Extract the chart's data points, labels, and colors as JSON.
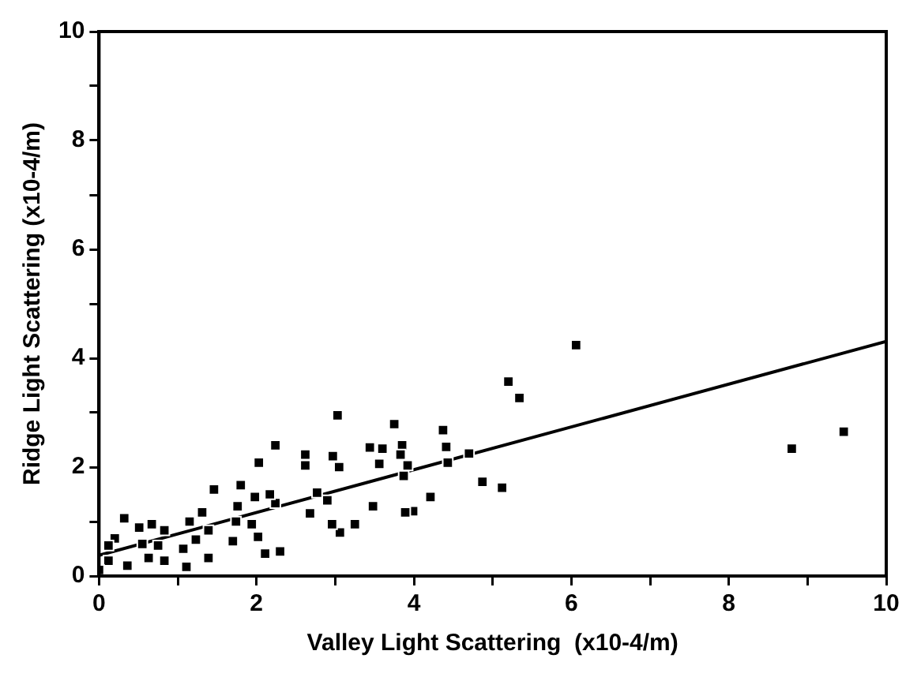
{
  "chart_data": {
    "type": "scatter",
    "xlabel": "Valley Light Scattering  (x10-4/m)",
    "ylabel": "Ridge Light Scattering (x10-4/m)",
    "xlim": [
      0,
      10
    ],
    "ylim": [
      0,
      10
    ],
    "xticks": [
      0,
      {
        "value": 1,
        "label": null
      },
      2,
      {
        "value": 3,
        "label": null
      },
      4,
      {
        "value": 5,
        "label": null
      },
      6,
      {
        "value": 7,
        "label": null
      },
      8,
      {
        "value": 9,
        "label": null
      },
      10
    ],
    "yticks": [
      0,
      {
        "value": 1,
        "label": null
      },
      2,
      {
        "value": 3,
        "label": null
      },
      4,
      {
        "value": 5,
        "label": null
      },
      6,
      {
        "value": 7,
        "label": null
      },
      8,
      {
        "value": 9,
        "label": null
      },
      10
    ],
    "marker": "square",
    "series": [
      {
        "color": "#000000",
        "x": [
          6.06,
          5.2,
          5.34,
          8.8,
          9.46,
          3.03,
          3.75,
          4.37,
          4.7,
          4.41,
          3.6,
          3.44,
          3.56,
          3.85,
          3.83,
          3.92,
          3.87,
          4.43,
          2.62,
          2.62,
          2.97,
          3.05,
          2.24,
          2.03,
          4.87,
          5.12,
          4.21,
          3.99,
          3.89,
          3.48,
          3.25,
          3.06,
          2.96,
          2.77,
          2.9,
          2.68,
          2.24,
          2.17,
          1.98,
          1.8,
          1.76,
          1.46,
          2.02,
          2.11,
          2.3,
          1.94,
          1.74,
          1.7,
          1.31,
          1.15,
          1.39,
          1.23,
          1.39,
          1.11,
          1.07,
          0.83,
          0.67,
          0.51,
          0.32,
          0.2,
          0.36,
          0.63,
          0.83,
          0.12,
          0.0,
          0.55,
          0.75,
          0.12
        ],
        "values": [
          4.24,
          3.57,
          3.27,
          2.34,
          2.65,
          2.95,
          2.79,
          2.68,
          2.25,
          2.37,
          2.34,
          2.36,
          2.06,
          2.4,
          2.23,
          2.03,
          1.84,
          2.08,
          2.23,
          2.03,
          2.2,
          2.0,
          2.4,
          2.08,
          1.73,
          1.62,
          1.45,
          1.19,
          1.17,
          1.28,
          0.95,
          0.8,
          0.95,
          1.53,
          1.39,
          1.15,
          1.34,
          1.5,
          1.45,
          1.67,
          1.28,
          1.59,
          0.72,
          0.41,
          0.45,
          0.95,
          1.0,
          0.64,
          1.17,
          1.0,
          0.84,
          0.67,
          0.33,
          0.17,
          0.5,
          0.84,
          0.95,
          0.89,
          1.06,
          0.69,
          0.19,
          0.33,
          0.28,
          0.28,
          0.11,
          0.59,
          0.56,
          0.56
        ]
      },
      {
        "type": "line",
        "marker": "none",
        "color": "#000000",
        "x": [
          0,
          10
        ],
        "values": [
          0.38,
          4.31
        ]
      }
    ]
  }
}
